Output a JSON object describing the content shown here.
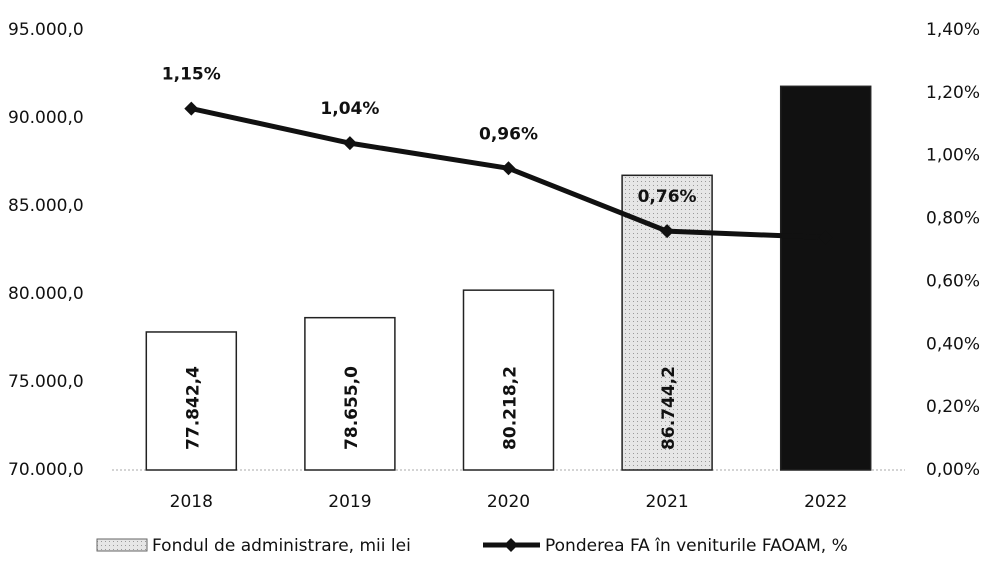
{
  "chart_data": {
    "type": "bar",
    "categories": [
      "2018",
      "2019",
      "2020",
      "2021",
      "2022"
    ],
    "series": [
      {
        "name": "Fondul de administrare, mii lei",
        "type": "bar",
        "axis": "y",
        "colors": [
          "#ffffff",
          "#ffffff",
          "#ffffff",
          "#dcdcdc",
          "#111111"
        ],
        "values": [
          77842.4,
          78655.0,
          80218.2,
          86744.2,
          91800
        ],
        "value_labels": [
          "77.842,4",
          "78.655,0",
          "80.218,2",
          "86.744,2",
          null
        ]
      },
      {
        "name": "Ponderea FA în veniturile FAOAM, %",
        "type": "line",
        "axis": "y2",
        "color": "#111111",
        "values": [
          1.15,
          1.04,
          0.96,
          0.76,
          0.74
        ],
        "value_labels": [
          "1,15%",
          "1,04%",
          "0,96%",
          "0,76%",
          null
        ]
      }
    ],
    "ylim": [
      70000,
      95000
    ],
    "yticks": [
      {
        "value": 70000,
        "label": "70.000,0"
      },
      {
        "value": 75000,
        "label": "75.000,0"
      },
      {
        "value": 80000,
        "label": "80.000,0"
      },
      {
        "value": 85000,
        "label": "85.000,0"
      },
      {
        "value": 90000,
        "label": "90.000,0"
      },
      {
        "value": 95000,
        "label": "95.000,0"
      }
    ],
    "y2lim": [
      0,
      1.4
    ],
    "y2ticks": [
      {
        "value": 0,
        "label": "0,00%"
      },
      {
        "value": 0.2,
        "label": "0,20%"
      },
      {
        "value": 0.4,
        "label": "0,40%"
      },
      {
        "value": 0.6,
        "label": "0,60%"
      },
      {
        "value": 0.8,
        "label": "0,80%"
      },
      {
        "value": 1.0,
        "label": "1,00%"
      },
      {
        "value": 1.2,
        "label": "1,20%"
      },
      {
        "value": 1.4,
        "label": "1,40%"
      }
    ],
    "grid": false,
    "legend": "bottom"
  }
}
